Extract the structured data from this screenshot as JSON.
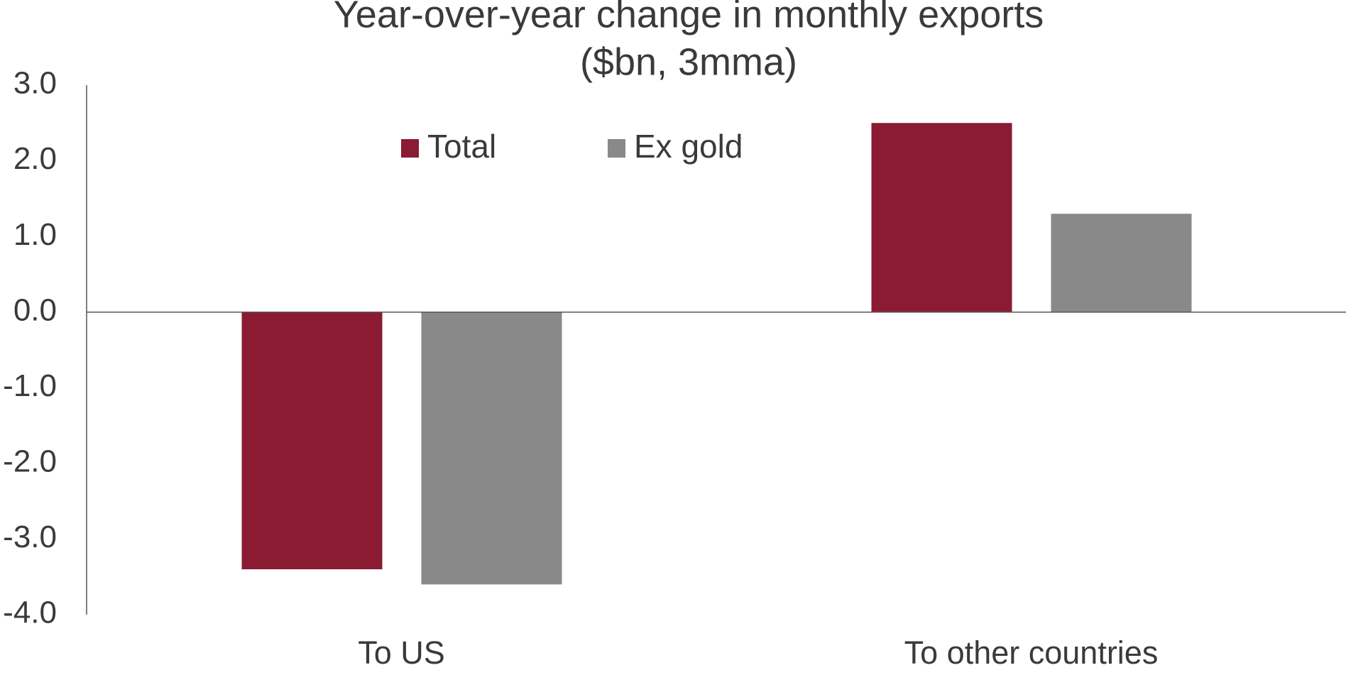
{
  "chart_data": {
    "type": "bar",
    "title": "Year-over-year change in monthly exports",
    "subtitle": "($bn, 3mma)",
    "categories": [
      "To US",
      "To other countries"
    ],
    "series": [
      {
        "name": "Total",
        "color": "#8b1a33",
        "values": [
          -3.4,
          2.5
        ]
      },
      {
        "name": "Ex gold",
        "color": "#898989",
        "values": [
          -3.6,
          1.3
        ]
      }
    ],
    "ylim": [
      -4,
      3
    ],
    "yticks": [
      {
        "value": 3,
        "label": "3.0"
      },
      {
        "value": 2,
        "label": "2.0"
      },
      {
        "value": 1,
        "label": "1.0"
      },
      {
        "value": 0,
        "label": "0.0"
      },
      {
        "value": -1,
        "label": "-1.0"
      },
      {
        "value": -2,
        "label": "-2.0"
      },
      {
        "value": -3,
        "label": "-3.0"
      },
      {
        "value": -4,
        "label": "-4.0"
      }
    ],
    "grid": false,
    "legend": "top"
  }
}
